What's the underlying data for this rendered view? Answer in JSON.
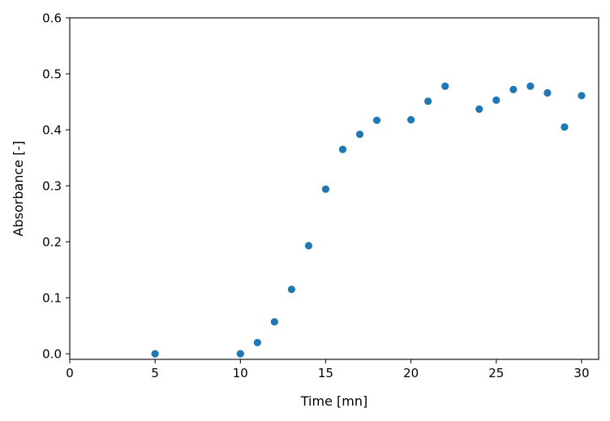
{
  "chart_data": {
    "type": "scatter",
    "title": "",
    "xlabel": "Time [mn]",
    "ylabel": "Absorbance [-]",
    "xlim": [
      0,
      31
    ],
    "ylim": [
      -0.01,
      0.6
    ],
    "xticks": [
      0,
      5,
      10,
      15,
      20,
      25,
      30
    ],
    "xtick_labels": [
      "0",
      "5",
      "10",
      "15",
      "20",
      "25",
      "30"
    ],
    "yticks": [
      0.0,
      0.1,
      0.2,
      0.3,
      0.4,
      0.5,
      0.6
    ],
    "ytick_labels": [
      "0.0",
      "0.1",
      "0.2",
      "0.3",
      "0.4",
      "0.5",
      "0.6"
    ],
    "grid": false,
    "legend": "none",
    "series": [
      {
        "color": "#1f77b4",
        "x": [
          5,
          10,
          11,
          12,
          13,
          14,
          15,
          16,
          17,
          18,
          20,
          21,
          22,
          24,
          25,
          26,
          27,
          28,
          29,
          30
        ],
        "y": [
          0.0,
          0.0,
          0.02,
          0.057,
          0.115,
          0.193,
          0.294,
          0.365,
          0.392,
          0.417,
          0.418,
          0.451,
          0.478,
          0.437,
          0.453,
          0.472,
          0.478,
          0.466,
          0.405,
          0.461
        ]
      }
    ]
  }
}
